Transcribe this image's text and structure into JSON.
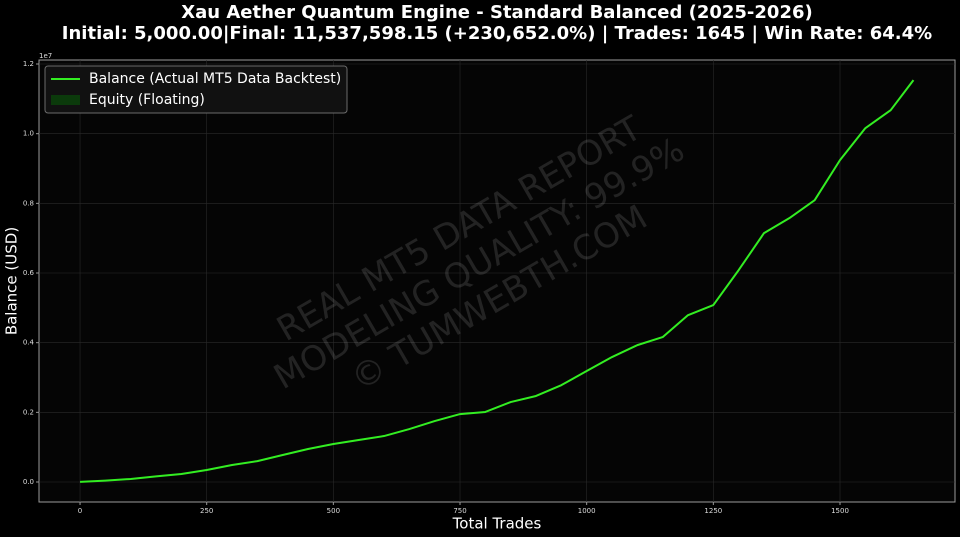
{
  "chart_data": {
    "type": "line",
    "title": "Xau Aether Quantum Engine - Standard Balanced (2025-2026)",
    "subtitle": "Initial: 5,000.00|Final: 11,537,598.15 (+230,652.0%) | Trades: 1645 | Win Rate: 64.4%",
    "x_label": "Total Trades",
    "y_label": "Balance (USD)",
    "y_offset_label": "1e7",
    "watermark": [
      "REAL MT5 DATA REPORT",
      "MODELING QUALITY: 99.9%",
      "© TUMWEBTH.COM"
    ],
    "x": [
      0,
      50,
      100,
      150,
      200,
      250,
      300,
      350,
      400,
      450,
      500,
      550,
      600,
      650,
      700,
      750,
      800,
      850,
      900,
      950,
      1000,
      1050,
      1100,
      1150,
      1200,
      1250,
      1300,
      1350,
      1400,
      1450,
      1500,
      1550,
      1600,
      1645
    ],
    "series": [
      {
        "name": "Balance (Actual MT5 Data Backtest)",
        "color": "#33ee22",
        "values": [
          5000,
          40000,
          86000,
          160000,
          230000,
          344000,
          488000,
          600000,
          775000,
          947000,
          1090000,
          1205000,
          1320000,
          1520000,
          1750000,
          1950000,
          2010000,
          2295000,
          2470000,
          2780000,
          3185000,
          3587000,
          3930000,
          4160000,
          4790000,
          5080000,
          6083000,
          7145000,
          7575000,
          8090000,
          9240000,
          10158000,
          10674000,
          11537598.15
        ]
      }
    ],
    "legend_patches": [
      {
        "label": "Equity (Floating)",
        "color": "#0b3a0b"
      }
    ],
    "legend_position": "upper left",
    "xlim": [
      -81,
      1727
    ],
    "ylim": [
      -574000,
      12115000
    ],
    "xticks": [
      0,
      250,
      500,
      750,
      1000,
      1250,
      1500
    ],
    "yticks": [
      {
        "value": 0,
        "label": "0.0"
      },
      {
        "value": 2000000,
        "label": "0.2"
      },
      {
        "value": 4000000,
        "label": "0.4"
      },
      {
        "value": 6000000,
        "label": "0.6"
      },
      {
        "value": 8000000,
        "label": "0.8"
      },
      {
        "value": 10000000,
        "label": "1.0"
      },
      {
        "value": 12000000,
        "label": "1.2"
      }
    ],
    "grid": true
  }
}
